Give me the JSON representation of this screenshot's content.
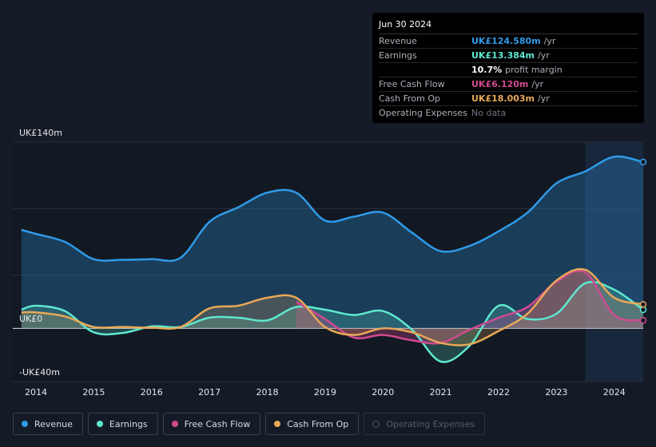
{
  "tooltip": {
    "date": "Jun 30 2024",
    "rows": [
      {
        "label": "Revenue",
        "value": "UK£124.580m",
        "unit": "/yr",
        "color": "#2f9be8"
      },
      {
        "label": "Earnings",
        "value": "UK£13.384m",
        "unit": "/yr",
        "color": "#5ee8cf"
      },
      {
        "label": "",
        "value": "10.7%",
        "unit": "profit margin",
        "color": "#ffffff"
      },
      {
        "label": "Free Cash Flow",
        "value": "UK£6.120m",
        "unit": "/yr",
        "color": "#d04a91"
      },
      {
        "label": "Cash From Op",
        "value": "UK£18.003m",
        "unit": "/yr",
        "color": "#e8a857"
      },
      {
        "label": "Operating Expenses",
        "value": "No data",
        "unit": "",
        "color": "#6d7480"
      }
    ]
  },
  "legend": [
    {
      "label": "Revenue",
      "color": "#2f9be8",
      "active": true
    },
    {
      "label": "Earnings",
      "color": "#5ee8cf",
      "active": true
    },
    {
      "label": "Free Cash Flow",
      "color": "#d04a91",
      "active": true
    },
    {
      "label": "Cash From Op",
      "color": "#e8a857",
      "active": true
    },
    {
      "label": "Operating Expenses",
      "color": "#555c68",
      "active": false
    }
  ],
  "chart_data": {
    "type": "line",
    "title": "",
    "xlabel": "",
    "ylabel": "",
    "y_axis_labels": {
      "top": "UK£140m",
      "zero": "UK£0",
      "bottom": "-UK£40m"
    },
    "ylim": [
      -40,
      140
    ],
    "xlim": [
      2013.6,
      2024.5
    ],
    "x_ticks": [
      "2014",
      "2015",
      "2016",
      "2017",
      "2018",
      "2019",
      "2020",
      "2021",
      "2022",
      "2023",
      "2024"
    ],
    "highlight_from": 2023.5,
    "series": [
      {
        "name": "Revenue",
        "color": "#2f9be8",
        "x": [
          2013.75,
          2014.0,
          2014.5,
          2015.0,
          2015.5,
          2016.0,
          2016.5,
          2017.0,
          2017.5,
          2018.0,
          2018.5,
          2019.0,
          2019.5,
          2020.0,
          2020.5,
          2021.0,
          2021.5,
          2022.0,
          2022.5,
          2023.0,
          2023.5,
          2024.0,
          2024.5
        ],
        "y": [
          74,
          71,
          65,
          52,
          51.5,
          52,
          53,
          80,
          91,
          102,
          102,
          81,
          84,
          87,
          72,
          58,
          62,
          73,
          87,
          109,
          118,
          129,
          125
        ]
      },
      {
        "name": "Earnings",
        "color": "#5ee8cf",
        "x": [
          2013.75,
          2014.0,
          2014.5,
          2015.0,
          2015.5,
          2016.0,
          2016.5,
          2017.0,
          2017.5,
          2018.0,
          2018.5,
          2019.0,
          2019.5,
          2020.0,
          2020.5,
          2021.0,
          2021.5,
          2022.0,
          2022.5,
          2023.0,
          2023.5,
          2024.0,
          2024.5
        ],
        "y": [
          14,
          17,
          13,
          -3,
          -3.5,
          1.5,
          1,
          8,
          8,
          6,
          16,
          14,
          10,
          13,
          -1,
          -25,
          -13,
          17,
          7,
          11,
          34,
          29,
          14
        ]
      },
      {
        "name": "Free Cash Flow",
        "color": "#d04a91",
        "x": [
          2018.5,
          2019.0,
          2019.5,
          2020.0,
          2020.5,
          2021.0,
          2021.5,
          2022.0,
          2022.5,
          2023.0,
          2023.5,
          2024.0,
          2024.5
        ],
        "y": [
          20,
          7,
          -7,
          -5,
          -9,
          -11,
          -1,
          8,
          16,
          35,
          42,
          10,
          6
        ]
      },
      {
        "name": "Cash From Op",
        "color": "#e8a857",
        "x": [
          2013.75,
          2014.0,
          2014.5,
          2015.0,
          2015.5,
          2016.0,
          2016.5,
          2017.0,
          2017.5,
          2018.0,
          2018.5,
          2019.0,
          2019.5,
          2020.0,
          2020.5,
          2021.0,
          2021.5,
          2022.0,
          2022.5,
          2023.0,
          2023.5,
          2024.0,
          2024.5
        ],
        "y": [
          12,
          12,
          9,
          1,
          1,
          0.5,
          1,
          15,
          17,
          23,
          23,
          1,
          -5,
          0,
          -3,
          -11,
          -12,
          -2,
          11,
          36,
          44,
          23,
          18
        ]
      }
    ]
  }
}
